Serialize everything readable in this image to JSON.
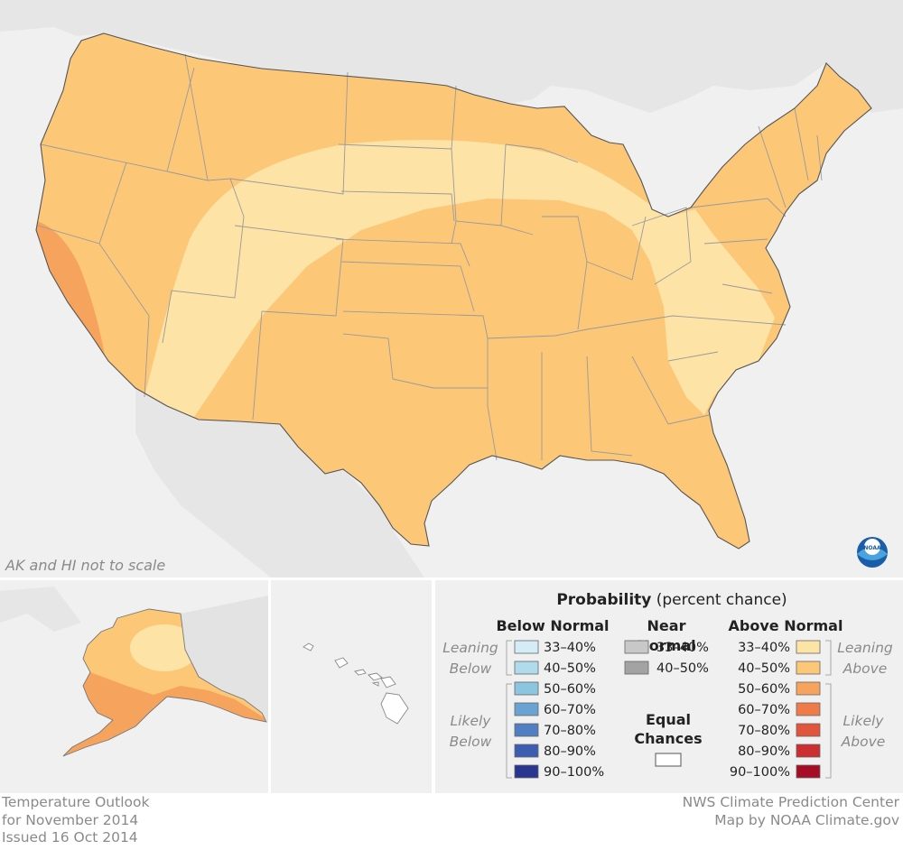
{
  "map": {
    "scale_note": "AK and HI not to scale",
    "title_lines": [
      "Temperature Outlook",
      "for November 2014",
      "Issued 16 Oct 2014"
    ],
    "credit_lines": [
      "NWS Climate Prediction Center",
      "Map by NOAA Climate.gov"
    ],
    "logo_text": "NOAA"
  },
  "legend": {
    "title_bold": "Probability",
    "title_rest": " (percent chance)",
    "below": {
      "heading": "Below Normal",
      "leaning_lines": [
        "Leaning",
        "Below"
      ],
      "likely_lines": [
        "Likely",
        "Below"
      ],
      "bins": [
        {
          "label": "33–40%",
          "color": "#d3ecf5"
        },
        {
          "label": "40–50%",
          "color": "#b0dbed"
        },
        {
          "label": "50–60%",
          "color": "#8bc5e0"
        },
        {
          "label": "60–70%",
          "color": "#6aa3d3"
        },
        {
          "label": "70–80%",
          "color": "#4f7fc2"
        },
        {
          "label": "80–90%",
          "color": "#3d5eb0"
        },
        {
          "label": "90–100%",
          "color": "#2a3590"
        }
      ]
    },
    "near": {
      "heading_lines": [
        "Near",
        "Normal"
      ],
      "bins": [
        {
          "label": "33–40%",
          "color": "#c8c8c8"
        },
        {
          "label": "40–50%",
          "color": "#a3a3a3"
        }
      ],
      "equal_lines": [
        "Equal",
        "Chances"
      ],
      "equal_color": "#ffffff"
    },
    "above": {
      "heading": "Above Normal",
      "leaning_lines": [
        "Leaning",
        "Above"
      ],
      "likely_lines": [
        "Likely",
        "Above"
      ],
      "bins": [
        {
          "label": "33–40%",
          "color": "#fde3a6"
        },
        {
          "label": "40–50%",
          "color": "#fcc878"
        },
        {
          "label": "50–60%",
          "color": "#f6a45d"
        },
        {
          "label": "60–70%",
          "color": "#ef7b48"
        },
        {
          "label": "70–80%",
          "color": "#e0553b"
        },
        {
          "label": "80–90%",
          "color": "#cb2f30"
        },
        {
          "label": "90–100%",
          "color": "#a60c25"
        }
      ]
    }
  }
}
